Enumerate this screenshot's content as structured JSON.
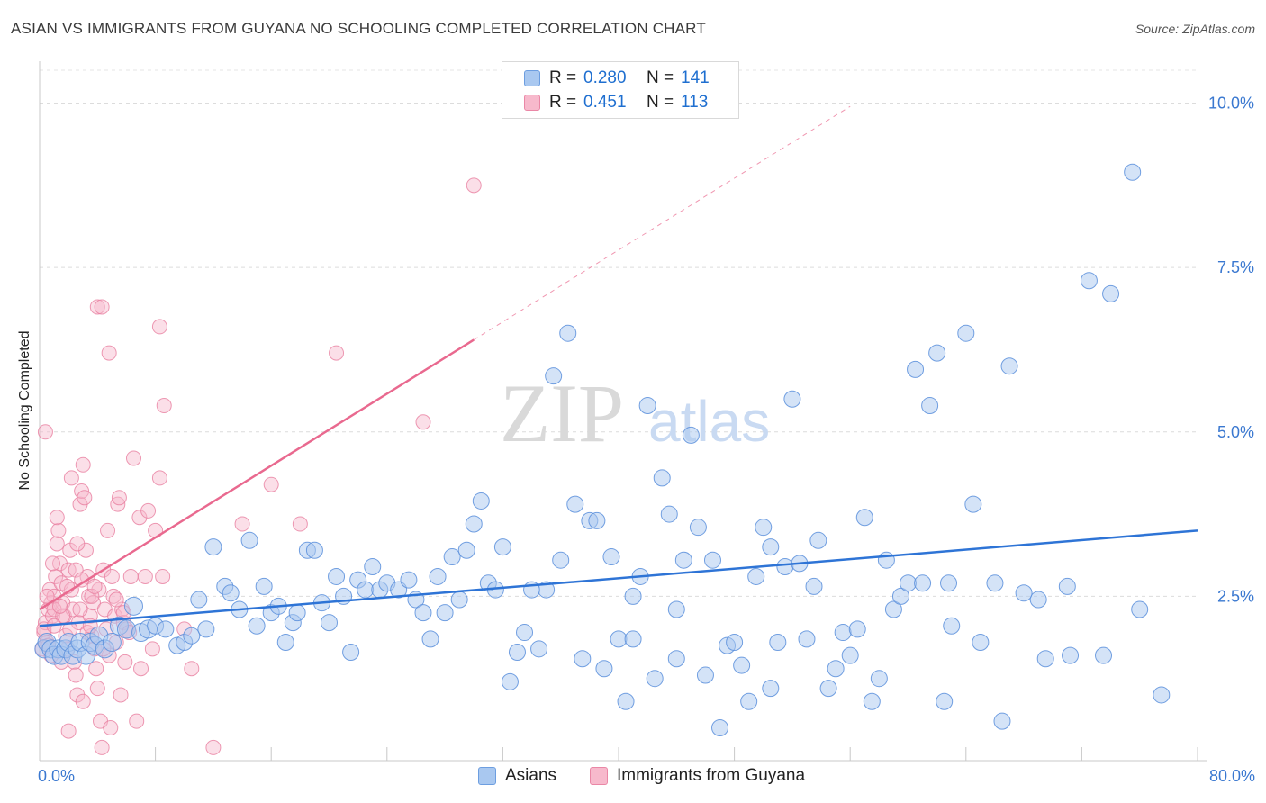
{
  "title": "ASIAN VS IMMIGRANTS FROM GUYANA NO SCHOOLING COMPLETED CORRELATION CHART",
  "source": "Source: ZipAtlas.com",
  "watermark": {
    "part1": "ZIP",
    "part2": "atlas"
  },
  "legend": {
    "rows": [
      {
        "r_label": "R =",
        "r_value": "0.280",
        "n_label": "N =",
        "n_value": "141",
        "color": "#a9c8f0",
        "border": "#6d9ee0"
      },
      {
        "r_label": "R =",
        "r_value": "0.451",
        "n_label": "N =",
        "n_value": "113",
        "color": "#f7b9cc",
        "border": "#ea87a6"
      }
    ]
  },
  "bottom_legend": [
    "Asians",
    "Immigrants from Guyana"
  ],
  "chart_data": {
    "type": "scatter",
    "title": "ASIAN VS IMMIGRANTS FROM GUYANA NO SCHOOLING COMPLETED CORRELATION CHART",
    "xlabel": "",
    "ylabel": "No Schooling Completed",
    "xlim": [
      0,
      80
    ],
    "ylim": [
      0,
      10.5
    ],
    "x_tick_labels": {
      "left": "0.0%",
      "right": "80.0%"
    },
    "y_ticks": [
      2.5,
      5.0,
      7.5,
      10.0
    ],
    "y_tick_labels": [
      "2.5%",
      "5.0%",
      "7.5%",
      "10.0%"
    ],
    "grid": true,
    "legend_position": "top-center",
    "colors": {
      "asians_fill": "#a9c8f0",
      "asians_stroke": "#5b8fdc",
      "asians_line": "#2e74d6",
      "guyana_fill": "#f7b9cc",
      "guyana_stroke": "#e87fa0",
      "guyana_line": "#e9698f"
    },
    "series": [
      {
        "name": "Asians",
        "r": 0.28,
        "n": 141,
        "trend": {
          "x": [
            0,
            80
          ],
          "y": [
            2.05,
            3.5
          ]
        },
        "points": [
          [
            0.3,
            1.7
          ],
          [
            0.5,
            1.8
          ],
          [
            0.8,
            1.7
          ],
          [
            1.0,
            1.6
          ],
          [
            1.3,
            1.7
          ],
          [
            1.5,
            1.6
          ],
          [
            1.8,
            1.7
          ],
          [
            2.0,
            1.8
          ],
          [
            2.3,
            1.6
          ],
          [
            2.6,
            1.7
          ],
          [
            2.8,
            1.8
          ],
          [
            3.2,
            1.6
          ],
          [
            3.5,
            1.8
          ],
          [
            3.8,
            1.75
          ],
          [
            4.1,
            1.9
          ],
          [
            4.5,
            1.7
          ],
          [
            5.0,
            1.8
          ],
          [
            5.5,
            2.05
          ],
          [
            6.0,
            2.0
          ],
          [
            6.5,
            2.35
          ],
          [
            7.0,
            1.95
          ],
          [
            7.5,
            2.0
          ],
          [
            8.0,
            2.05
          ],
          [
            8.7,
            2.0
          ],
          [
            9.5,
            1.75
          ],
          [
            10.0,
            1.8
          ],
          [
            10.5,
            1.9
          ],
          [
            11.0,
            2.45
          ],
          [
            11.5,
            2.0
          ],
          [
            12.0,
            3.25
          ],
          [
            12.8,
            2.65
          ],
          [
            13.2,
            2.55
          ],
          [
            13.8,
            2.3
          ],
          [
            14.5,
            3.35
          ],
          [
            15.0,
            2.05
          ],
          [
            15.5,
            2.65
          ],
          [
            16.0,
            2.25
          ],
          [
            16.5,
            2.35
          ],
          [
            17.0,
            1.8
          ],
          [
            17.5,
            2.1
          ],
          [
            17.8,
            2.25
          ],
          [
            18.5,
            3.2
          ],
          [
            19.0,
            3.2
          ],
          [
            19.5,
            2.4
          ],
          [
            20.0,
            2.1
          ],
          [
            20.5,
            2.8
          ],
          [
            21.0,
            2.5
          ],
          [
            21.5,
            1.65
          ],
          [
            22.0,
            2.75
          ],
          [
            22.5,
            2.6
          ],
          [
            23.0,
            2.95
          ],
          [
            23.5,
            2.6
          ],
          [
            24.0,
            2.7
          ],
          [
            24.8,
            2.6
          ],
          [
            25.5,
            2.75
          ],
          [
            26.0,
            2.45
          ],
          [
            26.5,
            2.25
          ],
          [
            27.0,
            1.85
          ],
          [
            27.5,
            2.8
          ],
          [
            28.0,
            2.25
          ],
          [
            28.5,
            3.1
          ],
          [
            29.0,
            2.45
          ],
          [
            29.5,
            3.2
          ],
          [
            30.0,
            3.6
          ],
          [
            30.5,
            3.95
          ],
          [
            31.0,
            2.7
          ],
          [
            31.5,
            2.6
          ],
          [
            32.0,
            3.25
          ],
          [
            32.5,
            1.2
          ],
          [
            33.0,
            1.65
          ],
          [
            33.5,
            1.95
          ],
          [
            34.0,
            2.6
          ],
          [
            34.5,
            1.7
          ],
          [
            35.0,
            2.6
          ],
          [
            35.5,
            5.85
          ],
          [
            36.0,
            3.05
          ],
          [
            36.5,
            6.5
          ],
          [
            37.0,
            3.9
          ],
          [
            37.5,
            1.55
          ],
          [
            38.0,
            3.65
          ],
          [
            38.5,
            3.65
          ],
          [
            39.0,
            1.4
          ],
          [
            39.5,
            3.1
          ],
          [
            40.0,
            1.85
          ],
          [
            40.5,
            0.9
          ],
          [
            41.0,
            1.85
          ],
          [
            41.5,
            2.8
          ],
          [
            42.0,
            5.4
          ],
          [
            42.5,
            1.25
          ],
          [
            43.0,
            4.3
          ],
          [
            43.5,
            3.75
          ],
          [
            44.0,
            2.3
          ],
          [
            44.5,
            3.05
          ],
          [
            45.0,
            4.95
          ],
          [
            45.5,
            3.55
          ],
          [
            46.0,
            1.3
          ],
          [
            46.5,
            3.05
          ],
          [
            47.0,
            0.5
          ],
          [
            47.5,
            1.75
          ],
          [
            48.0,
            1.8
          ],
          [
            48.5,
            1.45
          ],
          [
            49.0,
            0.9
          ],
          [
            49.5,
            2.8
          ],
          [
            50.0,
            3.55
          ],
          [
            50.5,
            3.25
          ],
          [
            51.0,
            1.8
          ],
          [
            51.5,
            2.95
          ],
          [
            52.0,
            5.5
          ],
          [
            52.5,
            3.0
          ],
          [
            53.0,
            1.85
          ],
          [
            53.5,
            2.65
          ],
          [
            53.8,
            3.35
          ],
          [
            54.5,
            1.1
          ],
          [
            55.0,
            1.4
          ],
          [
            55.5,
            1.95
          ],
          [
            56.0,
            1.6
          ],
          [
            56.5,
            2.0
          ],
          [
            57.0,
            3.7
          ],
          [
            57.5,
            0.9
          ],
          [
            58.0,
            1.25
          ],
          [
            58.5,
            3.05
          ],
          [
            59.0,
            2.3
          ],
          [
            59.5,
            2.5
          ],
          [
            60.0,
            2.7
          ],
          [
            60.5,
            5.95
          ],
          [
            61.0,
            2.7
          ],
          [
            61.5,
            5.4
          ],
          [
            62.0,
            6.2
          ],
          [
            62.5,
            0.9
          ],
          [
            62.8,
            2.7
          ],
          [
            63.0,
            2.05
          ],
          [
            64.0,
            6.5
          ],
          [
            64.5,
            3.9
          ],
          [
            65.0,
            1.8
          ],
          [
            66.5,
            0.6
          ],
          [
            66.0,
            2.7
          ],
          [
            67.0,
            6.0
          ],
          [
            69.0,
            2.45
          ],
          [
            68.0,
            2.55
          ],
          [
            69.5,
            1.55
          ],
          [
            71.0,
            2.65
          ],
          [
            71.2,
            1.6
          ],
          [
            72.5,
            7.3
          ],
          [
            73.5,
            1.6
          ],
          [
            74.0,
            7.1
          ],
          [
            76.0,
            2.3
          ],
          [
            77.5,
            1.0
          ],
          [
            75.5,
            8.95
          ],
          [
            50.5,
            1.1
          ],
          [
            41.0,
            2.5
          ],
          [
            44.0,
            1.55
          ]
        ]
      },
      {
        "name": "Immigrants from Guyana",
        "r": 0.451,
        "n": 113,
        "trend_solid": {
          "x": [
            0,
            30
          ],
          "y": [
            2.3,
            6.4
          ]
        },
        "trend_dashed": {
          "x": [
            30,
            56
          ],
          "y": [
            6.4,
            9.95
          ]
        },
        "points": [
          [
            0.2,
            1.7
          ],
          [
            0.3,
            1.95
          ],
          [
            0.4,
            2.1
          ],
          [
            0.5,
            1.8
          ],
          [
            0.6,
            2.3
          ],
          [
            0.7,
            2.6
          ],
          [
            0.8,
            2.4
          ],
          [
            0.9,
            2.2
          ],
          [
            1.0,
            2.5
          ],
          [
            1.1,
            2.8
          ],
          [
            1.2,
            3.3
          ],
          [
            1.3,
            3.5
          ],
          [
            1.4,
            3.0
          ],
          [
            1.5,
            2.7
          ],
          [
            1.6,
            2.4
          ],
          [
            1.7,
            2.2
          ],
          [
            1.8,
            1.9
          ],
          [
            1.9,
            1.7
          ],
          [
            2.0,
            2.9
          ],
          [
            2.1,
            3.2
          ],
          [
            2.2,
            2.6
          ],
          [
            2.3,
            2.3
          ],
          [
            2.4,
            1.5
          ],
          [
            2.5,
            1.3
          ],
          [
            2.6,
            1.0
          ],
          [
            2.7,
            2.1
          ],
          [
            2.8,
            3.9
          ],
          [
            2.9,
            4.1
          ],
          [
            3.0,
            4.5
          ],
          [
            3.1,
            4.0
          ],
          [
            3.2,
            3.2
          ],
          [
            3.3,
            2.8
          ],
          [
            3.4,
            2.5
          ],
          [
            3.5,
            2.2
          ],
          [
            3.6,
            1.9
          ],
          [
            3.7,
            2.4
          ],
          [
            3.8,
            1.7
          ],
          [
            3.9,
            1.4
          ],
          [
            4.0,
            1.1
          ],
          [
            4.1,
            2.6
          ],
          [
            4.2,
            0.6
          ],
          [
            4.3,
            0.2
          ],
          [
            4.4,
            2.9
          ],
          [
            4.5,
            2.3
          ],
          [
            4.6,
            2.0
          ],
          [
            4.7,
            3.5
          ],
          [
            4.8,
            1.6
          ],
          [
            4.9,
            0.5
          ],
          [
            5.0,
            2.8
          ],
          [
            5.1,
            2.5
          ],
          [
            5.2,
            2.2
          ],
          [
            5.3,
            1.8
          ],
          [
            5.4,
            3.9
          ],
          [
            5.5,
            4.0
          ],
          [
            5.6,
            1.0
          ],
          [
            5.7,
            2.3
          ],
          [
            5.8,
            2.1
          ],
          [
            5.9,
            1.5
          ],
          [
            6.0,
            2.0
          ],
          [
            6.3,
            2.8
          ],
          [
            6.5,
            4.6
          ],
          [
            6.7,
            0.6
          ],
          [
            6.9,
            3.7
          ],
          [
            7.0,
            1.4
          ],
          [
            7.3,
            2.8
          ],
          [
            7.5,
            3.8
          ],
          [
            7.8,
            1.7
          ],
          [
            8.0,
            3.5
          ],
          [
            8.3,
            4.3
          ],
          [
            8.5,
            2.8
          ],
          [
            0.4,
            5.0
          ],
          [
            0.3,
            2.0
          ],
          [
            1.0,
            2.3
          ],
          [
            1.5,
            1.5
          ],
          [
            2.0,
            0.45
          ],
          [
            2.2,
            4.3
          ],
          [
            2.5,
            2.9
          ],
          [
            3.0,
            0.9
          ],
          [
            0.5,
            2.5
          ],
          [
            1.2,
            3.7
          ],
          [
            0.8,
            1.6
          ],
          [
            1.6,
            2.2
          ],
          [
            2.8,
            2.3
          ],
          [
            3.6,
            2.5
          ],
          [
            4.4,
            1.7
          ],
          [
            0.9,
            3.0
          ],
          [
            1.9,
            2.65
          ],
          [
            2.6,
            3.3
          ],
          [
            3.3,
            1.95
          ],
          [
            4.0,
            6.9
          ],
          [
            4.3,
            6.9
          ],
          [
            4.8,
            6.2
          ],
          [
            5.3,
            2.45
          ],
          [
            5.8,
            2.25
          ],
          [
            6.2,
            1.95
          ],
          [
            0.6,
            1.75
          ],
          [
            1.4,
            2.35
          ],
          [
            2.1,
            2.0
          ],
          [
            2.9,
            2.75
          ],
          [
            3.5,
            2.05
          ],
          [
            8.3,
            6.6
          ],
          [
            8.6,
            5.4
          ],
          [
            10.5,
            1.4
          ],
          [
            10.0,
            2.0
          ],
          [
            12.0,
            0.2
          ],
          [
            14.0,
            3.6
          ],
          [
            16.0,
            4.2
          ],
          [
            18.0,
            3.6
          ],
          [
            20.5,
            6.2
          ],
          [
            26.5,
            5.15
          ],
          [
            30.0,
            8.75
          ],
          [
            1.0,
            2.05
          ],
          [
            3.8,
            2.65
          ]
        ]
      }
    ]
  }
}
